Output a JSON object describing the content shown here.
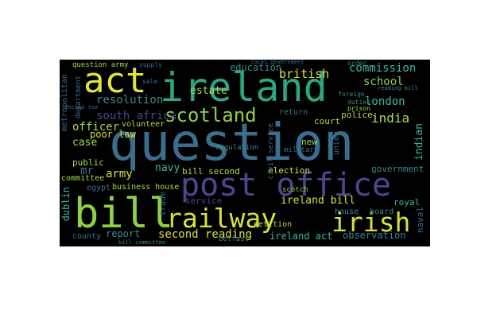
{
  "wordcloud": {
    "words": [
      {
        "text": "question",
        "color": "#3a6e8f"
      },
      {
        "text": "ireland",
        "color": "#2aa783"
      },
      {
        "text": "post office",
        "color": "#4a4790"
      },
      {
        "text": "bill",
        "color": "#8fd146"
      },
      {
        "text": "railway",
        "color": "#d8e23a"
      },
      {
        "text": "irish",
        "color": "#d8e23a"
      },
      {
        "text": "act",
        "color": "#e3e33d"
      },
      {
        "text": "scotland",
        "color": "#8fd146"
      },
      {
        "text": "british",
        "color": "#d8e23a"
      },
      {
        "text": "commission",
        "color": "#3fb8a0"
      },
      {
        "text": "school",
        "color": "#8fd146"
      },
      {
        "text": "london",
        "color": "#3fb8a0"
      },
      {
        "text": "india",
        "color": "#a7db4a"
      },
      {
        "text": "indian",
        "color": "#3fb8a0"
      },
      {
        "text": "resolution",
        "color": "#3a8a8a"
      },
      {
        "text": "estate",
        "color": "#a7db4a"
      },
      {
        "text": "education",
        "color": "#3a8a8a"
      },
      {
        "text": "south africa",
        "color": "#4a4790"
      },
      {
        "text": "officer",
        "color": "#a7db4a"
      },
      {
        "text": "case",
        "color": "#a7db4a"
      },
      {
        "text": "poor law",
        "color": "#d8e23a"
      },
      {
        "text": "army",
        "color": "#d8e23a"
      },
      {
        "text": "navy",
        "color": "#3fb8a0"
      },
      {
        "text": "bill second",
        "color": "#a7db4a"
      },
      {
        "text": "election",
        "color": "#d8e23a"
      },
      {
        "text": "government",
        "color": "#3a8a8a"
      },
      {
        "text": "ireland bill",
        "color": "#d8e23a"
      },
      {
        "text": "second reading",
        "color": "#d8e23a"
      },
      {
        "text": "report",
        "color": "#3a8a8a"
      },
      {
        "text": "ireland act",
        "color": "#3fb8a0"
      },
      {
        "text": "observation",
        "color": "#3a8a8a"
      },
      {
        "text": "dublin",
        "color": "#3fb8a0"
      },
      {
        "text": "court",
        "color": "#a7db4a"
      },
      {
        "text": "police",
        "color": "#a7db4a"
      },
      {
        "text": "return",
        "color": "#3a6e8f"
      },
      {
        "text": "new",
        "color": "#a7db4a"
      },
      {
        "text": "service",
        "color": "#4a4790"
      },
      {
        "text": "petition",
        "color": "#a7db4a"
      },
      {
        "text": "committee",
        "color": "#a7db4a"
      },
      {
        "text": "business house",
        "color": "#a7db4a"
      },
      {
        "text": "egypt",
        "color": "#3a6e8f"
      },
      {
        "text": "public",
        "color": "#a7db4a"
      },
      {
        "text": "volunteer",
        "color": "#a7db4a"
      },
      {
        "text": "house",
        "color": "#3a8a8a"
      },
      {
        "text": "board",
        "color": "#3a8a8a"
      },
      {
        "text": "royal",
        "color": "#3fb8a0"
      },
      {
        "text": "naval",
        "color": "#3a6e8f"
      },
      {
        "text": "trade",
        "color": "#3a6e8f"
      },
      {
        "text": "scotch",
        "color": "#8fd146"
      },
      {
        "text": "military",
        "color": "#3a6e8f"
      },
      {
        "text": "regulation",
        "color": "#3a8a8a"
      },
      {
        "text": "county",
        "color": "#3a6e8f"
      },
      {
        "text": "belfast",
        "color": "#3a8a8a"
      },
      {
        "text": "mr",
        "color": "#3a6e8f"
      },
      {
        "text": "metropolitan",
        "color": "#3a6e8f"
      },
      {
        "text": "department",
        "color": "#3a6e8f"
      },
      {
        "text": "question army",
        "color": "#a7db4a"
      },
      {
        "text": "union",
        "color": "#3a6e8f"
      },
      {
        "text": "civil service",
        "color": "#3a6e8f"
      },
      {
        "text": "local government",
        "color": "#3a6e8f"
      },
      {
        "text": "prison",
        "color": "#a7db4a"
      },
      {
        "text": "foreign",
        "color": "#3a8a8a"
      },
      {
        "text": "duties",
        "color": "#3a8a8a"
      },
      {
        "text": "supply",
        "color": "#3a6e8f"
      },
      {
        "text": "sale",
        "color": "#3a6e8f"
      },
      {
        "text": "order",
        "color": "#3a8a8a"
      },
      {
        "text": "income tax",
        "color": "#3a6e8f"
      },
      {
        "text": "bill committee",
        "color": "#3a8a8a"
      },
      {
        "text": "reading bill",
        "color": "#3a8a8a"
      }
    ]
  }
}
